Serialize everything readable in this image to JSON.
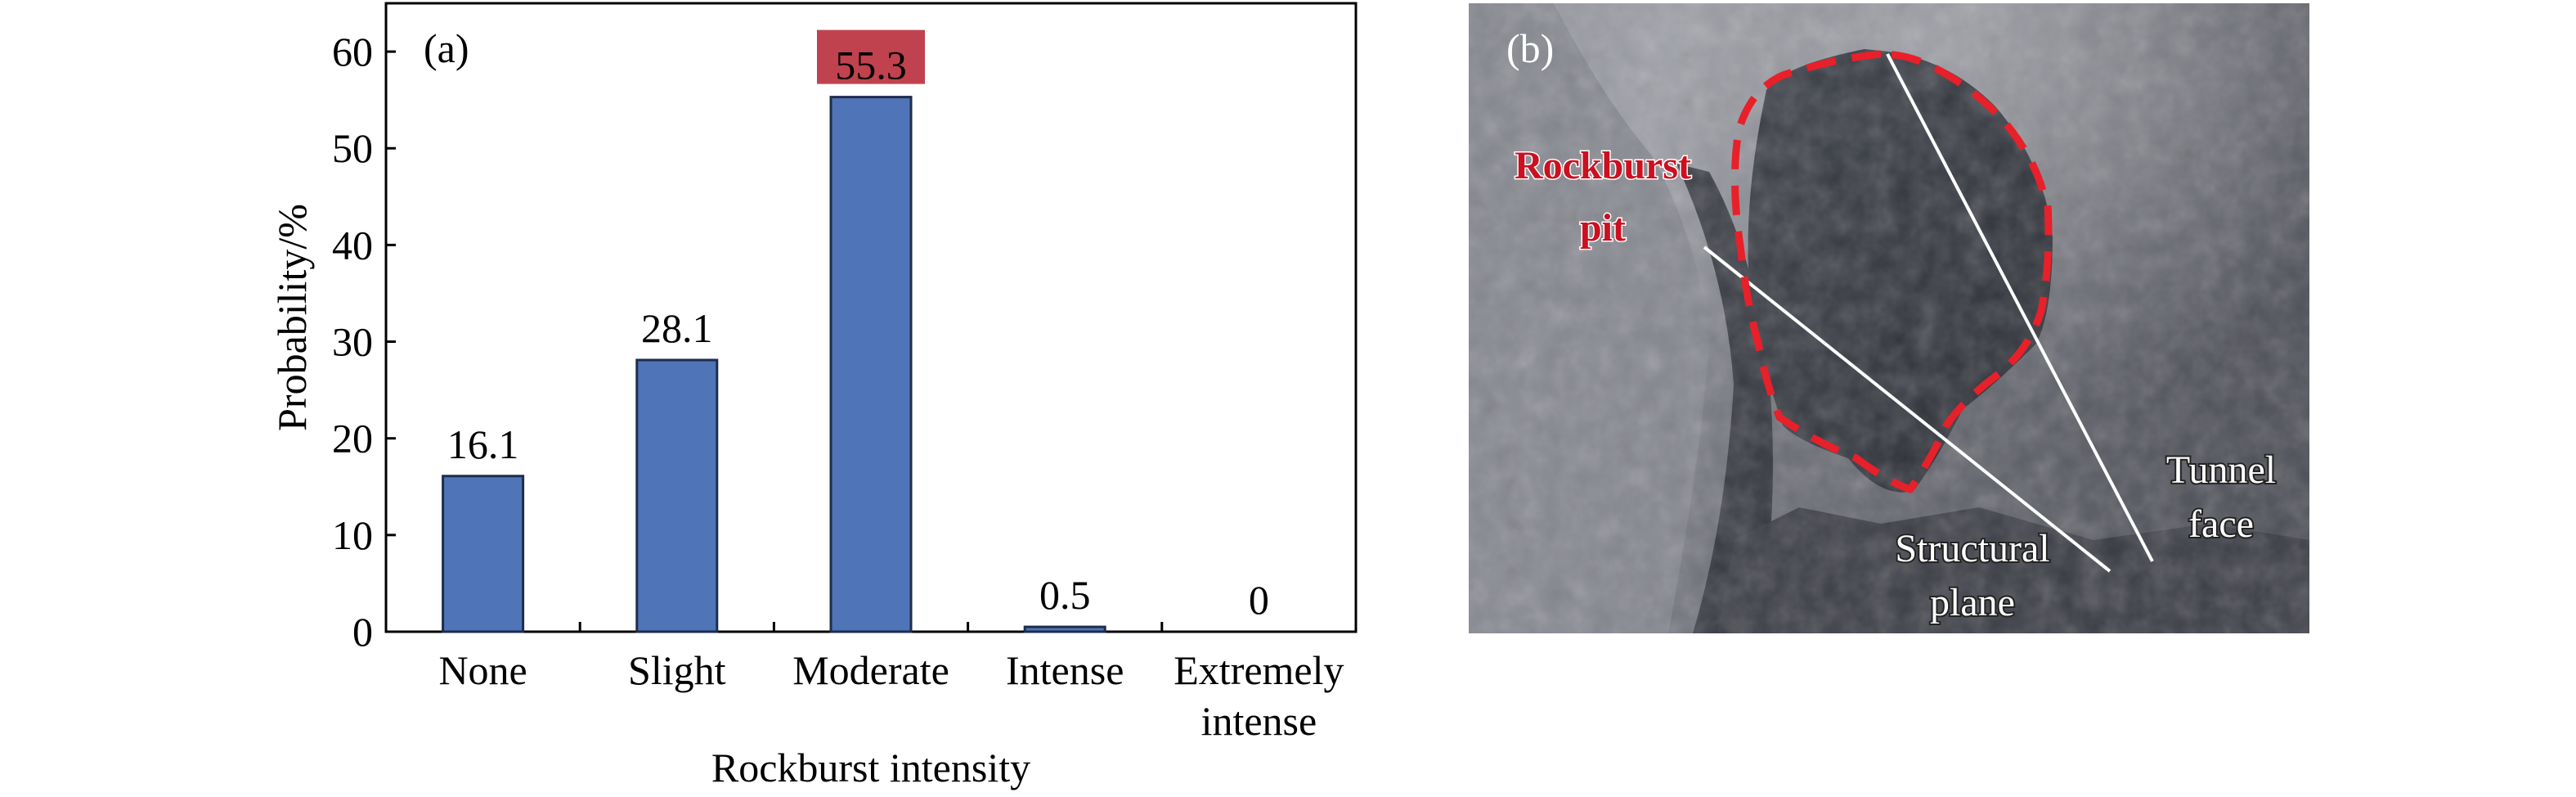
{
  "panel_a": {
    "label": "(a)",
    "chart_data": {
      "type": "bar",
      "title": "",
      "xlabel": "Rockburst intensity",
      "ylabel": "Probability/%",
      "categories": [
        [
          "None"
        ],
        [
          "Slight"
        ],
        [
          "Moderate"
        ],
        [
          "Intense"
        ],
        [
          "Extremely",
          "intense"
        ]
      ],
      "values": [
        16.1,
        28.1,
        55.3,
        0.5,
        0
      ],
      "value_labels": [
        "16.1",
        "28.1",
        "55.3",
        "0.5",
        "0"
      ],
      "highlight_index": 2,
      "ylim": [
        0,
        65
      ],
      "yticks": [
        0,
        10,
        20,
        30,
        40,
        50,
        60
      ],
      "grid": false,
      "legend": "none",
      "colors": {
        "bar": "#4f74b8",
        "bar_edge": "#1e2d4c",
        "highlight_box": "#c0424e",
        "axis": "#000000"
      }
    }
  },
  "panel_b": {
    "label": "(b)",
    "annotations": {
      "rockburst_pit": [
        "Rockburst",
        "pit"
      ],
      "tunnel_face": [
        "Tunnel",
        "face"
      ],
      "structural_plane": [
        "Structural",
        "plane"
      ]
    },
    "colors": {
      "pit_outline": "#e8202a",
      "pit_text": "#cc1020",
      "line": "#ffffff"
    }
  }
}
